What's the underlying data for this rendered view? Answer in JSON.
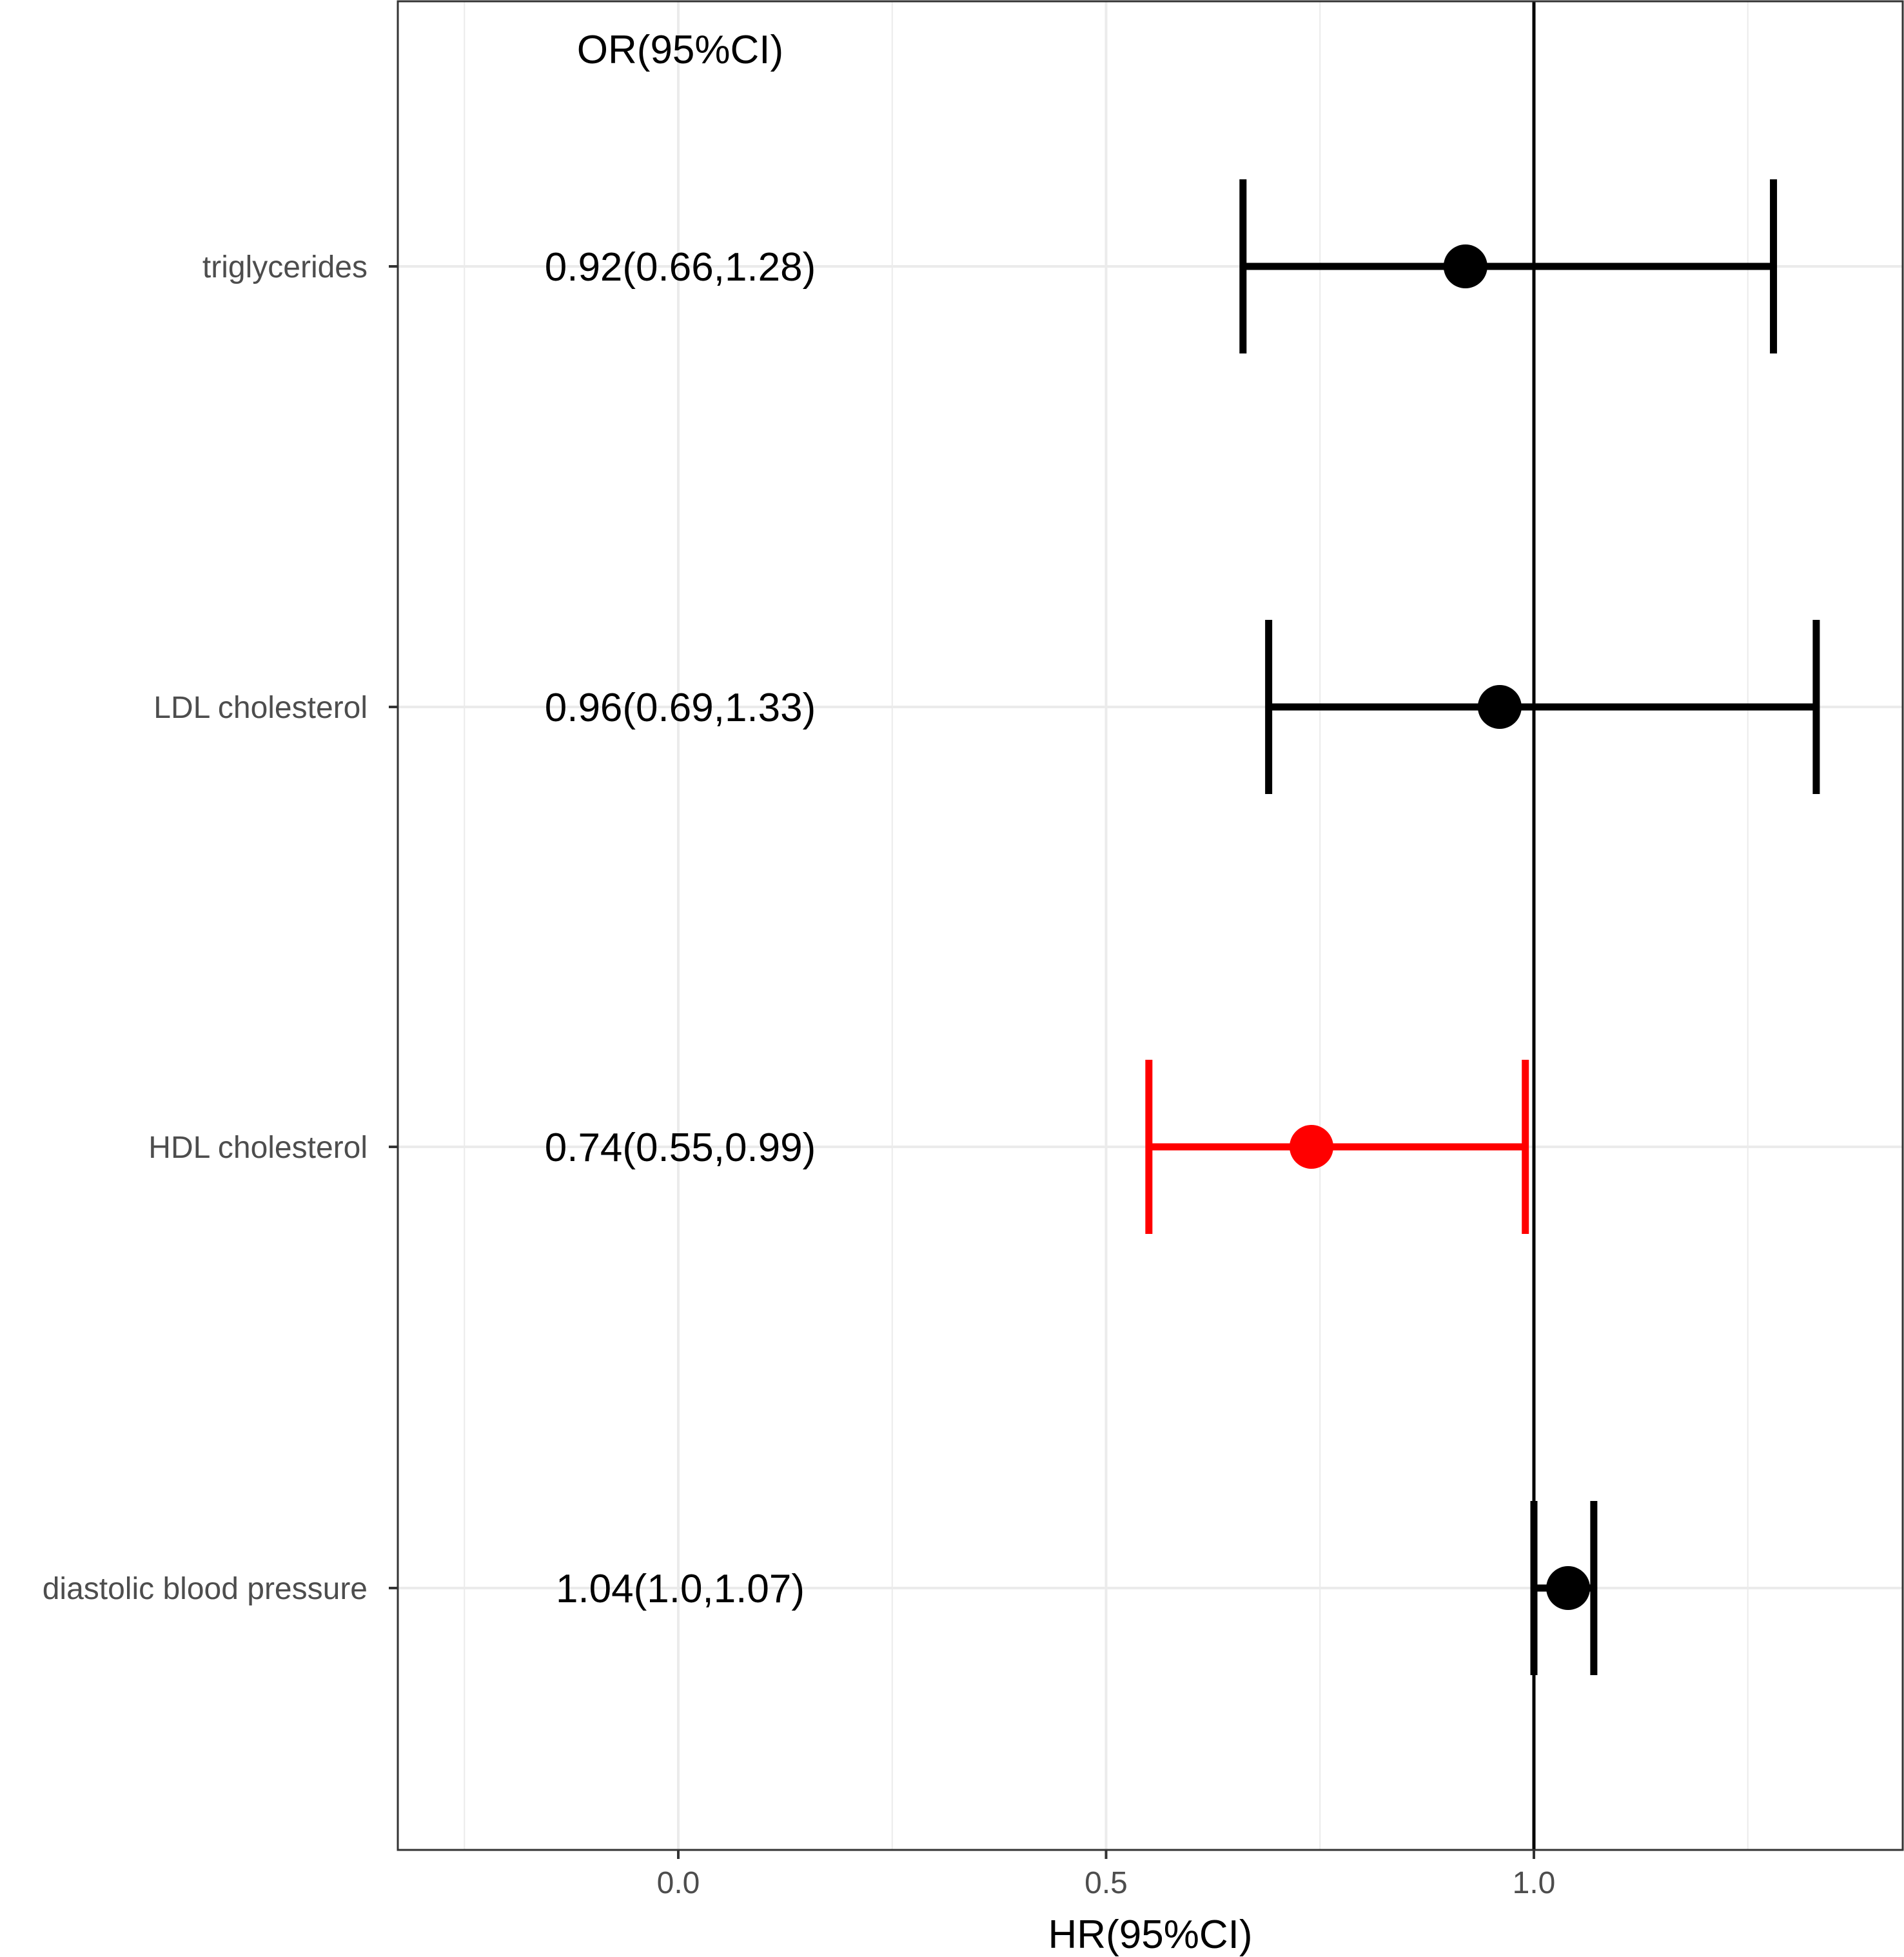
{
  "chart_data": {
    "type": "forest",
    "xlabel": "HR(95%CI)",
    "column_header": "OR(95%CI)",
    "xlim": [
      -0.33,
      1.41
    ],
    "xticks": [
      0.0,
      0.5,
      1.0
    ],
    "xtick_labels": [
      "0.0",
      "0.5",
      "1.0"
    ],
    "minor_gridlines": [
      -0.25,
      0.25,
      0.75,
      1.25
    ],
    "reference_line": 1.0,
    "grid": true,
    "colors": {
      "default": "#000000",
      "highlight": "#ff0000",
      "grid": "#ebebeb",
      "label": "#4d4d4d"
    },
    "rows": [
      {
        "label": "triglycerides",
        "estimate": 0.92,
        "lower": 0.66,
        "upper": 1.28,
        "text": "0.92(0.66,1.28)",
        "highlight": false
      },
      {
        "label": "LDL cholesterol",
        "estimate": 0.96,
        "lower": 0.69,
        "upper": 1.33,
        "text": "0.96(0.69,1.33)",
        "highlight": false
      },
      {
        "label": "HDL cholesterol",
        "estimate": 0.74,
        "lower": 0.55,
        "upper": 0.99,
        "text": "0.74(0.55,0.99)",
        "highlight": true
      },
      {
        "label": "diastolic blood pressure",
        "estimate": 1.04,
        "lower": 1.0,
        "upper": 1.07,
        "text": "1.04(1.0,1.07)",
        "highlight": false
      }
    ]
  }
}
